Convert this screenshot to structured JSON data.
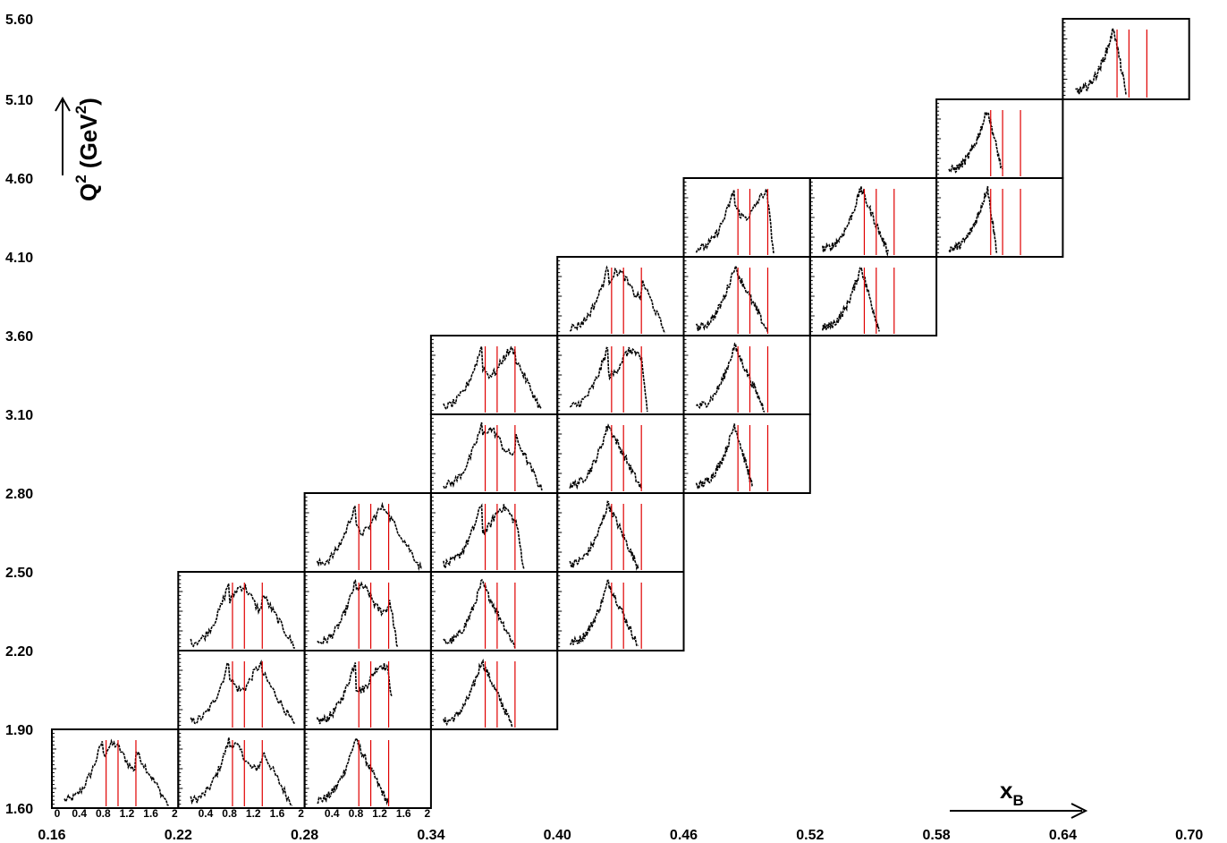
{
  "chart_data": {
    "type": "line",
    "layout": "grid of small-multiple histograms, one cell per (x_B, Q^2) bin",
    "x_axis": {
      "label": "x",
      "label_subscript": "B",
      "bin_edges": [
        0.16,
        0.22,
        0.28,
        0.34,
        0.4,
        0.46,
        0.52,
        0.58,
        0.64,
        0.7
      ],
      "tick_labels": [
        "0.16",
        "0.22",
        "0.28",
        "0.34",
        "0.40",
        "0.46",
        "0.52",
        "0.58",
        "0.64",
        "0.70"
      ]
    },
    "y_axis": {
      "label": "Q",
      "label_sup": "2",
      "label_unit": " (GeV",
      "label_unit_sup": "2",
      "label_close": ")",
      "bin_edges": [
        1.6,
        1.9,
        2.2,
        2.5,
        2.8,
        3.1,
        3.6,
        4.1,
        4.6,
        5.1,
        5.6
      ],
      "tick_labels": [
        "1.60",
        "1.90",
        "2.20",
        "2.50",
        "2.80",
        "3.10",
        "3.60",
        "4.10",
        "4.60",
        "5.10",
        "5.60"
      ]
    },
    "cell_x_axis": {
      "range": [
        0,
        2
      ],
      "tick_labels": [
        "0",
        "0.4",
        "0.8",
        "1.2",
        "1.6",
        "2"
      ]
    },
    "cells": [
      {
        "x_bin": 0,
        "y_bin": 0,
        "lines": [
          0.85,
          1.05,
          1.35
        ],
        "peak": 0.8,
        "end": 1.9
      },
      {
        "x_bin": 1,
        "y_bin": 0,
        "lines": [
          0.85,
          1.05,
          1.35
        ],
        "peak": 0.8,
        "end": 1.85
      },
      {
        "x_bin": 2,
        "y_bin": 0,
        "lines": [
          0.85,
          1.05,
          1.35
        ],
        "peak": 0.8,
        "end": 1.35
      },
      {
        "x_bin": 1,
        "y_bin": 1,
        "lines": [
          0.85,
          1.05,
          1.35
        ],
        "peak": 0.8,
        "end": 1.9
      },
      {
        "x_bin": 2,
        "y_bin": 1,
        "lines": [
          0.85,
          1.05,
          1.35
        ],
        "peak": 0.8,
        "end": 1.4
      },
      {
        "x_bin": 3,
        "y_bin": 1,
        "lines": [
          0.85,
          1.05,
          1.35
        ],
        "peak": 0.8,
        "end": 1.3
      },
      {
        "x_bin": 1,
        "y_bin": 2,
        "lines": [
          0.85,
          1.05,
          1.35
        ],
        "peak": 0.8,
        "end": 1.9
      },
      {
        "x_bin": 2,
        "y_bin": 2,
        "lines": [
          0.85,
          1.05,
          1.35
        ],
        "peak": 0.8,
        "end": 1.5
      },
      {
        "x_bin": 3,
        "y_bin": 2,
        "lines": [
          0.85,
          1.05,
          1.35
        ],
        "peak": 0.8,
        "end": 1.35
      },
      {
        "x_bin": 4,
        "y_bin": 2,
        "lines": [
          0.85,
          1.05,
          1.35
        ],
        "peak": 0.8,
        "end": 1.3
      },
      {
        "x_bin": 2,
        "y_bin": 3,
        "lines": [
          0.85,
          1.05,
          1.35
        ],
        "peak": 0.8,
        "end": 1.9
      },
      {
        "x_bin": 3,
        "y_bin": 3,
        "lines": [
          0.85,
          1.05,
          1.35
        ],
        "peak": 0.8,
        "end": 1.5
      },
      {
        "x_bin": 4,
        "y_bin": 3,
        "lines": [
          0.85,
          1.05,
          1.35
        ],
        "peak": 0.8,
        "end": 1.3
      },
      {
        "x_bin": 3,
        "y_bin": 4,
        "lines": [
          0.85,
          1.05,
          1.35
        ],
        "peak": 0.8,
        "end": 1.8
      },
      {
        "x_bin": 4,
        "y_bin": 4,
        "lines": [
          0.85,
          1.05,
          1.35
        ],
        "peak": 0.8,
        "end": 1.35
      },
      {
        "x_bin": 5,
        "y_bin": 4,
        "lines": [
          0.85,
          1.05,
          1.35
        ],
        "peak": 0.8,
        "end": 1.1
      },
      {
        "x_bin": 3,
        "y_bin": 5,
        "lines": [
          0.85,
          1.05,
          1.35
        ],
        "peak": 0.8,
        "end": 1.8
      },
      {
        "x_bin": 4,
        "y_bin": 5,
        "lines": [
          0.85,
          1.05,
          1.35
        ],
        "peak": 0.8,
        "end": 1.45
      },
      {
        "x_bin": 5,
        "y_bin": 5,
        "lines": [
          0.85,
          1.05,
          1.35
        ],
        "peak": 0.8,
        "end": 1.3
      },
      {
        "x_bin": 4,
        "y_bin": 6,
        "lines": [
          0.85,
          1.05,
          1.35
        ],
        "peak": 0.8,
        "end": 1.75
      },
      {
        "x_bin": 5,
        "y_bin": 6,
        "lines": [
          0.85,
          1.05,
          1.35
        ],
        "peak": 0.8,
        "end": 1.35
      },
      {
        "x_bin": 6,
        "y_bin": 6,
        "lines": [
          0.85,
          1.05,
          1.35
        ],
        "peak": 0.8,
        "end": 1.1
      },
      {
        "x_bin": 5,
        "y_bin": 7,
        "lines": [
          0.85,
          1.05,
          1.35
        ],
        "peak": 0.8,
        "end": 1.45
      },
      {
        "x_bin": 6,
        "y_bin": 7,
        "lines": [
          0.85,
          1.05,
          1.35
        ],
        "peak": 0.8,
        "end": 1.25
      },
      {
        "x_bin": 7,
        "y_bin": 7,
        "lines": [
          0.85,
          1.05,
          1.35
        ],
        "peak": 0.8,
        "end": 0.95
      },
      {
        "x_bin": 7,
        "y_bin": 8,
        "lines": [
          0.85,
          1.05,
          1.35
        ],
        "peak": 0.8,
        "end": 1.05
      },
      {
        "x_bin": 8,
        "y_bin": 9,
        "lines": [
          0.85,
          1.05,
          1.35
        ],
        "peak": 0.8,
        "end": 1.0
      }
    ],
    "line_color": "#e00000",
    "histogram_color": "#000000"
  }
}
